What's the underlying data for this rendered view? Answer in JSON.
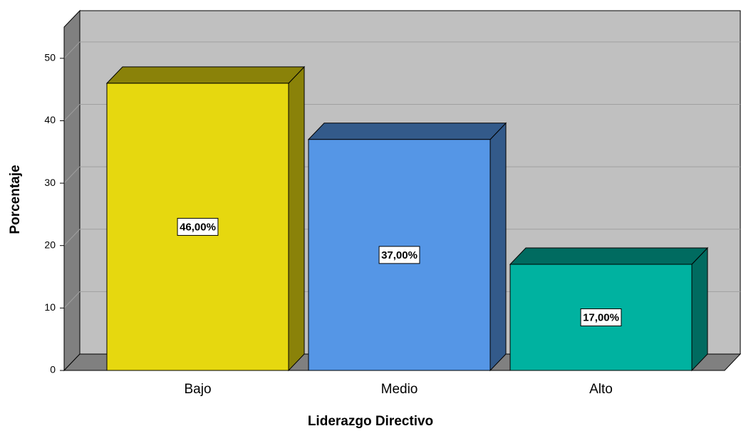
{
  "chart_data": {
    "type": "bar3d",
    "x_label": "Liderazgo Directivo",
    "y_label": "Porcentaje",
    "categories": [
      "Bajo",
      "Medio",
      "Alto"
    ],
    "values": [
      46,
      37,
      17
    ],
    "value_labels": [
      "46,00%",
      "37,00%",
      "17,00%"
    ],
    "colors": [
      "#e6d80f",
      "#5596e6",
      "#00b2a0"
    ],
    "ylim": [
      0,
      55
    ],
    "yticks": [
      0,
      10,
      20,
      30,
      40,
      50
    ],
    "grid": true
  }
}
